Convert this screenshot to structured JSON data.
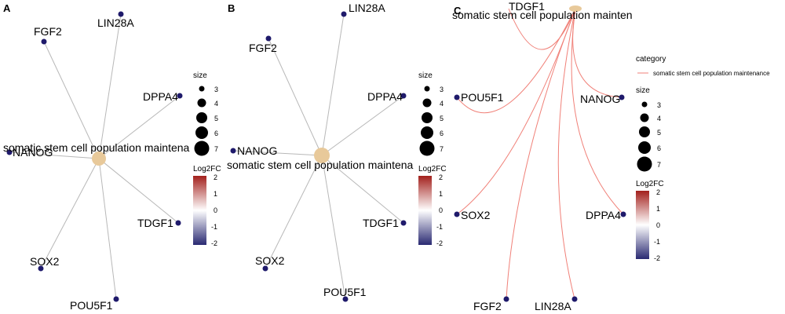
{
  "panels": [
    {
      "letter": "A",
      "term": "somatic stem cell population maintenance",
      "genes": [
        "FGF2",
        "LIN28A",
        "DPPA4",
        "NANOG",
        "TDGF1",
        "SOX2",
        "POU5F1"
      ]
    },
    {
      "letter": "B",
      "term": "somatic stem cell population maintenance",
      "genes": [
        "FGF2",
        "LIN28A",
        "DPPA4",
        "NANOG",
        "TDGF1",
        "SOX2",
        "POU5F1"
      ]
    },
    {
      "letter": "C",
      "term": "somatic stem cell population maintenance",
      "genes": [
        "TDGF1",
        "POU5F1",
        "NANOG",
        "SOX2",
        "DPPA4",
        "FGF2",
        "LIN28A"
      ]
    }
  ],
  "legend": {
    "size_title": "size",
    "size_values": [
      "3",
      "4",
      "5",
      "6",
      "7"
    ],
    "color_title": "Log2FC",
    "color_ticks": [
      "2",
      "1",
      "0",
      "-1",
      "-2"
    ],
    "category_title": "category",
    "category_item": "somatic stem cell population maintenance"
  },
  "colors": {
    "gene_node": "#1f1a6b",
    "term_node": "#e8c99a",
    "edge_gray": "#b8b8b8",
    "edge_red": "#f08078",
    "scale_high": "#a3201c",
    "scale_mid": "#ffffff",
    "scale_low": "#2a2a72"
  }
}
